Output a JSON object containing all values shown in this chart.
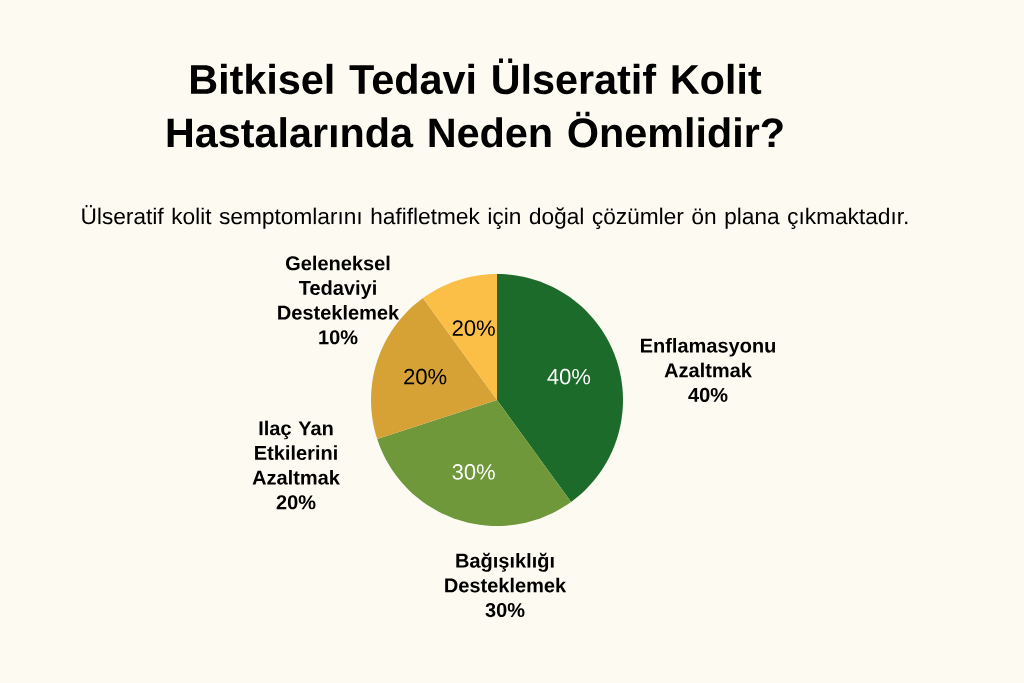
{
  "chart_data": {
    "type": "pie",
    "title": "Bitkisel Tedavi Ülseratif Kolit Hastalarında Neden Önemlidir?",
    "subtitle": "Ülseratif kolit semptomlarını hafifletmek için doğal çözümler ön plana çıkmaktadır.",
    "categories": [
      "Enflamasyonu Azaltmak",
      "Bağışıklığı Desteklemek",
      "Ilaç Yan Etkilerini Azaltmak",
      "Geleneksel Tedaviyi Desteklemek"
    ],
    "values": [
      40,
      30,
      20,
      10
    ],
    "colors": [
      "#1d6b2b",
      "#6f983a",
      "#d6a236",
      "#fbbf47"
    ],
    "value_labels": [
      "40%",
      "30%",
      "20%",
      "10%"
    ],
    "annotations": [
      "40%",
      "30%",
      "20%",
      "20%"
    ]
  }
}
